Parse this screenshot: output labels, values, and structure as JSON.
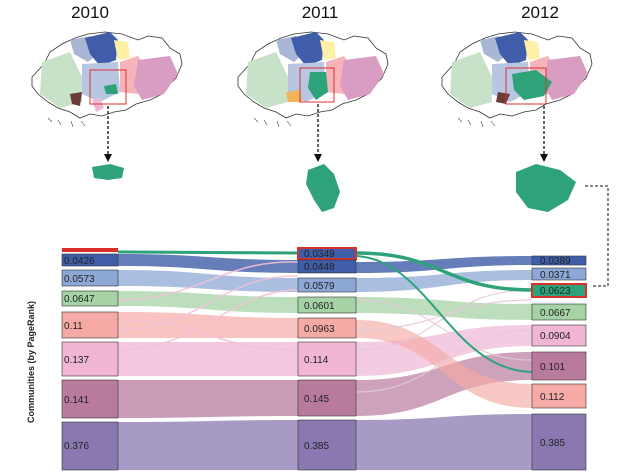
{
  "years": [
    "2010",
    "2011",
    "2012"
  ],
  "axis_label": "Communities (by PageRank)",
  "colors": {
    "dark_blue": "#3f5da8",
    "mid_blue": "#8da8d6",
    "green": "#a6d3a6",
    "salmon": "#f5aaa6",
    "pink": "#f0b6d4",
    "mauve": "#b87b9d",
    "purple": "#8a78b0",
    "highlight_green": "#2ea37a",
    "highlight_red": "#d8312c"
  },
  "columns": [
    {
      "year": "2010",
      "nodes": [
        "0.0426",
        "0.0573",
        "0.0647",
        "0.11",
        "0.137",
        "0.141",
        "0.376"
      ]
    },
    {
      "year": "2011",
      "nodes": [
        "0.0349",
        "0.0448",
        "0.0579",
        "0.0601",
        "0.0963",
        "0.114",
        "0.145",
        "0.385"
      ]
    },
    {
      "year": "2012",
      "nodes": [
        "0.0389",
        "0.0371",
        "0.0623",
        "0.0667",
        "0.0904",
        "0.101",
        "0.112",
        "0.385"
      ]
    }
  ]
}
